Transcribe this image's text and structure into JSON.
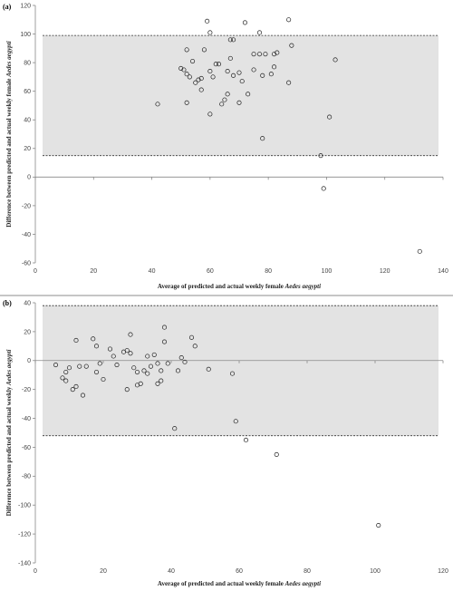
{
  "chart_data": [
    {
      "type": "scatter",
      "panel_label": "(a)",
      "xlabel_prefix": "Average of predicted  and actual weekly female ",
      "xlabel_species": "Aedes aegypti",
      "ylabel_prefix": "Difference between predicted and actual weekly female ",
      "ylabel_species": "Aedes aegypti",
      "xlim": [
        0,
        140
      ],
      "ylim": [
        -60,
        120
      ],
      "x_ticks": [
        0,
        20,
        40,
        60,
        80,
        100,
        120,
        140
      ],
      "y_ticks": [
        -60,
        -40,
        -20,
        0,
        20,
        40,
        60,
        80,
        100,
        120
      ],
      "limits_of_agreement": {
        "upper": 99,
        "lower": 15
      },
      "points": [
        {
          "x": 42,
          "y": 51
        },
        {
          "x": 50,
          "y": 76
        },
        {
          "x": 51,
          "y": 75
        },
        {
          "x": 52,
          "y": 89
        },
        {
          "x": 52,
          "y": 72
        },
        {
          "x": 52,
          "y": 52
        },
        {
          "x": 53,
          "y": 70
        },
        {
          "x": 54,
          "y": 81
        },
        {
          "x": 55,
          "y": 66
        },
        {
          "x": 56,
          "y": 68
        },
        {
          "x": 57,
          "y": 61
        },
        {
          "x": 57,
          "y": 69
        },
        {
          "x": 58,
          "y": 89
        },
        {
          "x": 59,
          "y": 109
        },
        {
          "x": 60,
          "y": 101
        },
        {
          "x": 60,
          "y": 74
        },
        {
          "x": 60,
          "y": 44
        },
        {
          "x": 61,
          "y": 70
        },
        {
          "x": 62,
          "y": 79
        },
        {
          "x": 63,
          "y": 79
        },
        {
          "x": 64,
          "y": 51
        },
        {
          "x": 65,
          "y": 54
        },
        {
          "x": 66,
          "y": 58
        },
        {
          "x": 66,
          "y": 74
        },
        {
          "x": 67,
          "y": 96
        },
        {
          "x": 67,
          "y": 83
        },
        {
          "x": 68,
          "y": 96
        },
        {
          "x": 68,
          "y": 71
        },
        {
          "x": 70,
          "y": 52
        },
        {
          "x": 70,
          "y": 73
        },
        {
          "x": 71,
          "y": 67
        },
        {
          "x": 72,
          "y": 108
        },
        {
          "x": 73,
          "y": 58
        },
        {
          "x": 75,
          "y": 86
        },
        {
          "x": 75,
          "y": 75
        },
        {
          "x": 77,
          "y": 101
        },
        {
          "x": 77,
          "y": 86
        },
        {
          "x": 78,
          "y": 71
        },
        {
          "x": 78,
          "y": 27
        },
        {
          "x": 79,
          "y": 86
        },
        {
          "x": 81,
          "y": 72
        },
        {
          "x": 82,
          "y": 77
        },
        {
          "x": 82,
          "y": 86
        },
        {
          "x": 83,
          "y": 87
        },
        {
          "x": 87,
          "y": 110
        },
        {
          "x": 87,
          "y": 66
        },
        {
          "x": 88,
          "y": 92
        },
        {
          "x": 98,
          "y": 15
        },
        {
          "x": 99,
          "y": -8
        },
        {
          "x": 101,
          "y": 42
        },
        {
          "x": 103,
          "y": 82
        },
        {
          "x": 132,
          "y": -52
        }
      ]
    },
    {
      "type": "scatter",
      "panel_label": "(b)",
      "xlabel_prefix": "Average of predicted  and actual weekly female ",
      "xlabel_species": "Aedes aegypti",
      "ylabel_prefix": "Difference between predicted and actual weekly ",
      "ylabel_species": "Aedes aegypti",
      "xlim": [
        0,
        120
      ],
      "ylim": [
        -140,
        40
      ],
      "x_ticks": [
        0,
        20,
        40,
        60,
        80,
        100,
        120
      ],
      "y_ticks": [
        -140,
        -120,
        -100,
        -80,
        -60,
        -40,
        -20,
        0,
        20,
        40
      ],
      "limits_of_agreement": {
        "upper": 38,
        "lower": -52
      },
      "points": [
        {
          "x": 6,
          "y": -3
        },
        {
          "x": 8,
          "y": -12
        },
        {
          "x": 9,
          "y": -14
        },
        {
          "x": 9,
          "y": -8
        },
        {
          "x": 10,
          "y": -5
        },
        {
          "x": 11,
          "y": -20
        },
        {
          "x": 12,
          "y": 14
        },
        {
          "x": 12,
          "y": -18
        },
        {
          "x": 13,
          "y": -4
        },
        {
          "x": 14,
          "y": -24
        },
        {
          "x": 15,
          "y": -4
        },
        {
          "x": 17,
          "y": 15
        },
        {
          "x": 18,
          "y": 10
        },
        {
          "x": 18,
          "y": -8
        },
        {
          "x": 19,
          "y": -2
        },
        {
          "x": 20,
          "y": -13
        },
        {
          "x": 22,
          "y": 8
        },
        {
          "x": 23,
          "y": 3
        },
        {
          "x": 24,
          "y": -3
        },
        {
          "x": 26,
          "y": 6
        },
        {
          "x": 27,
          "y": 7
        },
        {
          "x": 27,
          "y": -20
        },
        {
          "x": 28,
          "y": 5
        },
        {
          "x": 28,
          "y": 18
        },
        {
          "x": 29,
          "y": -5
        },
        {
          "x": 30,
          "y": -17
        },
        {
          "x": 30,
          "y": -8
        },
        {
          "x": 31,
          "y": -16
        },
        {
          "x": 32,
          "y": -7
        },
        {
          "x": 33,
          "y": -9
        },
        {
          "x": 33,
          "y": 3
        },
        {
          "x": 34,
          "y": -4
        },
        {
          "x": 35,
          "y": 4
        },
        {
          "x": 36,
          "y": -2
        },
        {
          "x": 36,
          "y": -16
        },
        {
          "x": 37,
          "y": -14
        },
        {
          "x": 37,
          "y": -7
        },
        {
          "x": 38,
          "y": 23
        },
        {
          "x": 38,
          "y": 13
        },
        {
          "x": 39,
          "y": -2
        },
        {
          "x": 41,
          "y": -47
        },
        {
          "x": 42,
          "y": -7
        },
        {
          "x": 43,
          "y": 2
        },
        {
          "x": 44,
          "y": -1
        },
        {
          "x": 46,
          "y": 16
        },
        {
          "x": 47,
          "y": 10
        },
        {
          "x": 51,
          "y": -6
        },
        {
          "x": 58,
          "y": -9
        },
        {
          "x": 59,
          "y": -42
        },
        {
          "x": 62,
          "y": -55
        },
        {
          "x": 71,
          "y": -65
        },
        {
          "x": 101,
          "y": -114
        }
      ]
    }
  ]
}
